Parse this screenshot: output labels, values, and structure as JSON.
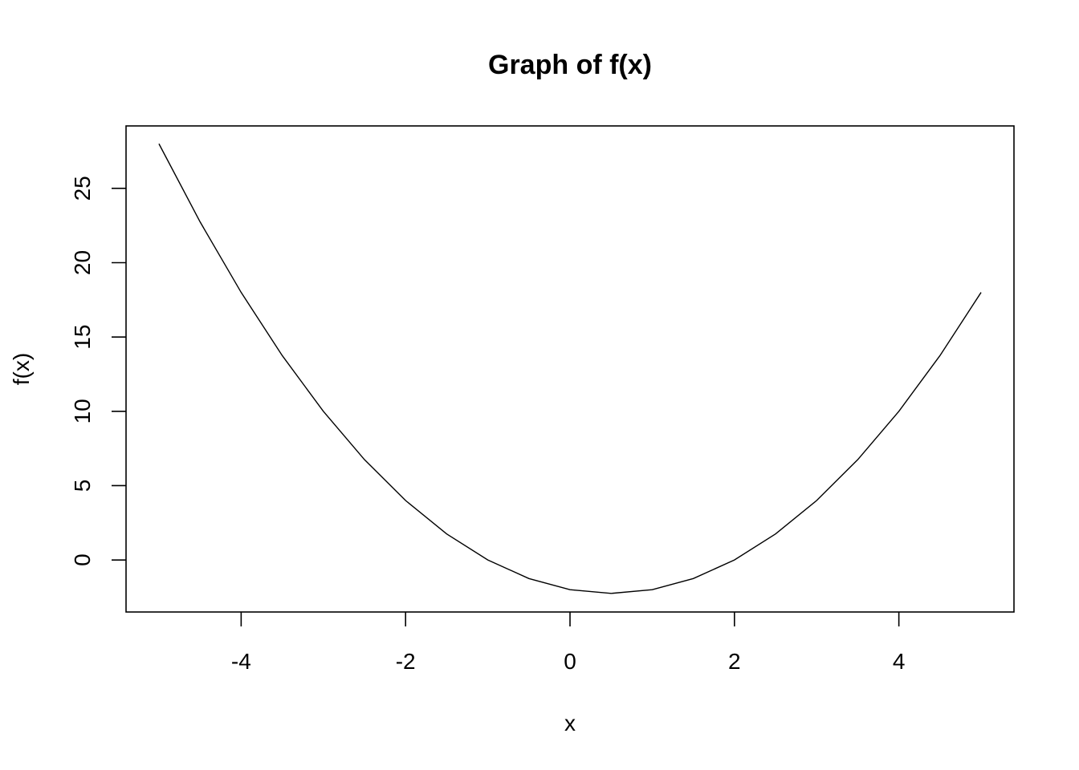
{
  "chart_data": {
    "type": "line",
    "title": "Graph of f(x)",
    "xlabel": "x",
    "ylabel": "f(x)",
    "xlim": [
      -5.4,
      5.4
    ],
    "ylim": [
      -3.5,
      29.2
    ],
    "x_ticks": [
      -4,
      -2,
      0,
      2,
      4
    ],
    "y_ticks": [
      0,
      5,
      10,
      15,
      20,
      25
    ],
    "x_tick_labels": [
      "-4",
      "-2",
      "0",
      "2",
      "4"
    ],
    "y_tick_labels": [
      "0",
      "5",
      "10",
      "15",
      "20",
      "25"
    ],
    "grid": false,
    "legend": false,
    "series": [
      {
        "color": "#000000",
        "x": [
          -5,
          -4.5,
          -4,
          -3.5,
          -3,
          -2.5,
          -2,
          -1.5,
          -1,
          -0.5,
          0,
          0.5,
          1,
          1.5,
          2,
          2.5,
          3,
          3.5,
          4,
          4.5,
          5
        ],
        "y": [
          28,
          22.75,
          18,
          13.75,
          10,
          6.75,
          4,
          1.75,
          0,
          -1.25,
          -2,
          -2.25,
          -2,
          -1.25,
          0,
          1.75,
          4,
          6.75,
          10,
          13.75,
          18
        ]
      }
    ]
  }
}
